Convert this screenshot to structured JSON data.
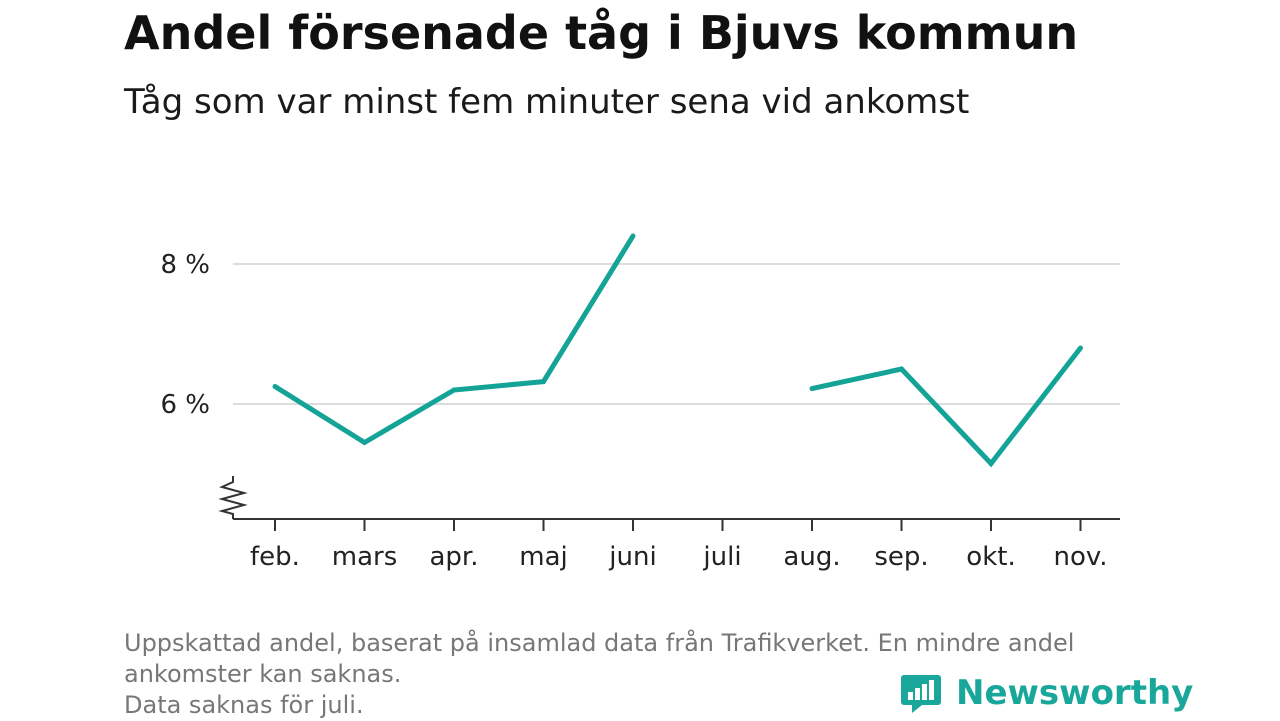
{
  "title": "Andel försenade tåg i Bjuvs kommun",
  "subtitle": "Tåg som var minst fem minuter sena vid ankomst",
  "footnote": {
    "line1": "Uppskattad andel, baserat på insamlad data från Trafikverket. En mindre andel",
    "line2": "ankomster kan saknas.",
    "line3": "Data saknas för juli."
  },
  "brand": {
    "name": "Newsworthy",
    "icon": "newsworthy-bar-chart-icon",
    "color": "#18a79a"
  },
  "colors": {
    "line": "#14a397",
    "grid": "#dddddd",
    "axis": "#333333"
  },
  "chart_data": {
    "type": "line",
    "title": "Andel försenade tåg i Bjuvs kommun",
    "subtitle": "Tåg som var minst fem minuter sena vid ankomst",
    "categories": [
      "feb.",
      "mars",
      "apr.",
      "maj",
      "juni",
      "juli",
      "aug.",
      "sep.",
      "okt.",
      "nov."
    ],
    "values": [
      6.25,
      5.45,
      6.2,
      6.32,
      8.4,
      null,
      6.22,
      6.5,
      5.15,
      6.8
    ],
    "ylim": [
      4.4,
      9.0
    ],
    "yticks": [
      6,
      8
    ],
    "ytick_labels": [
      "6 %",
      "8 %"
    ],
    "axis_break": true,
    "grid": true,
    "xlabel": "",
    "ylabel": ""
  }
}
